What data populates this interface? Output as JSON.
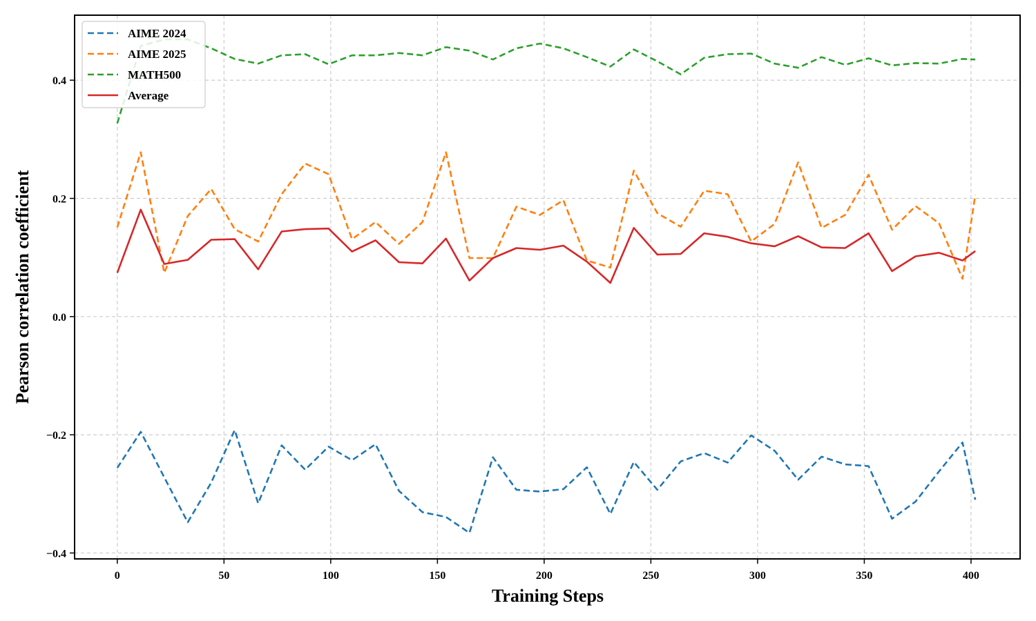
{
  "chart_data": {
    "type": "line",
    "title": "",
    "xlabel": "Training Steps",
    "ylabel": "Pearson correlation coefficient",
    "xlim": [
      -20,
      423
    ],
    "ylim": [
      -0.41,
      0.51
    ],
    "xticks": [
      0,
      50,
      100,
      150,
      200,
      250,
      300,
      350,
      400
    ],
    "xtick_labels": [
      "0",
      "50",
      "100",
      "150",
      "200",
      "250",
      "300",
      "350",
      "400"
    ],
    "yticks": [
      -0.4,
      -0.2,
      0.0,
      0.2,
      0.4
    ],
    "ytick_labels": [
      "−0.4",
      "−0.2",
      "0.0",
      "0.2",
      "0.4"
    ],
    "grid": true,
    "legend_position": "top-left",
    "x": [
      0,
      11,
      22,
      33,
      44,
      55,
      66,
      77,
      88,
      99,
      110,
      121,
      132,
      143,
      154,
      165,
      176,
      187,
      198,
      209,
      220,
      231,
      242,
      253,
      264,
      275,
      286,
      297,
      308,
      319,
      330,
      341,
      352,
      363,
      374,
      385,
      396,
      402
    ],
    "series": [
      {
        "name": "AIME 2024",
        "color": "#1f77b4",
        "dashed": true,
        "values": [
          -0.256,
          -0.195,
          -0.272,
          -0.348,
          -0.281,
          -0.192,
          -0.316,
          -0.218,
          -0.259,
          -0.22,
          -0.243,
          -0.216,
          -0.295,
          -0.331,
          -0.339,
          -0.366,
          -0.238,
          -0.293,
          -0.296,
          -0.292,
          -0.255,
          -0.334,
          -0.246,
          -0.293,
          -0.245,
          -0.231,
          -0.247,
          -0.201,
          -0.227,
          -0.276,
          -0.237,
          -0.25,
          -0.253,
          -0.342,
          -0.313,
          -0.262,
          -0.213,
          -0.31
        ]
      },
      {
        "name": "AIME 2025",
        "color": "#ff7f0e",
        "dashed": true,
        "values": [
          0.151,
          0.278,
          0.074,
          0.17,
          0.216,
          0.148,
          0.127,
          0.207,
          0.259,
          0.241,
          0.131,
          0.16,
          0.123,
          0.16,
          0.278,
          0.099,
          0.099,
          0.186,
          0.172,
          0.197,
          0.095,
          0.083,
          0.247,
          0.175,
          0.152,
          0.213,
          0.207,
          0.127,
          0.157,
          0.261,
          0.15,
          0.172,
          0.24,
          0.147,
          0.187,
          0.158,
          0.064,
          0.206
        ]
      },
      {
        "name": "MATH500",
        "color": "#2ca02c",
        "dashed": true,
        "values": [
          0.327,
          0.458,
          0.469,
          0.469,
          0.454,
          0.436,
          0.428,
          0.442,
          0.444,
          0.427,
          0.442,
          0.442,
          0.446,
          0.442,
          0.456,
          0.45,
          0.435,
          0.454,
          0.462,
          0.454,
          0.439,
          0.423,
          0.452,
          0.432,
          0.41,
          0.438,
          0.444,
          0.445,
          0.428,
          0.421,
          0.439,
          0.426,
          0.437,
          0.425,
          0.429,
          0.428,
          0.436,
          0.435
        ]
      },
      {
        "name": "Average",
        "color": "#d62728",
        "dashed": false,
        "values": [
          0.074,
          0.181,
          0.089,
          0.096,
          0.13,
          0.131,
          0.08,
          0.144,
          0.148,
          0.149,
          0.11,
          0.129,
          0.092,
          0.09,
          0.132,
          0.061,
          0.099,
          0.116,
          0.113,
          0.12,
          0.093,
          0.057,
          0.15,
          0.105,
          0.106,
          0.141,
          0.135,
          0.124,
          0.119,
          0.136,
          0.117,
          0.116,
          0.141,
          0.077,
          0.102,
          0.108,
          0.095,
          0.111
        ]
      }
    ]
  }
}
